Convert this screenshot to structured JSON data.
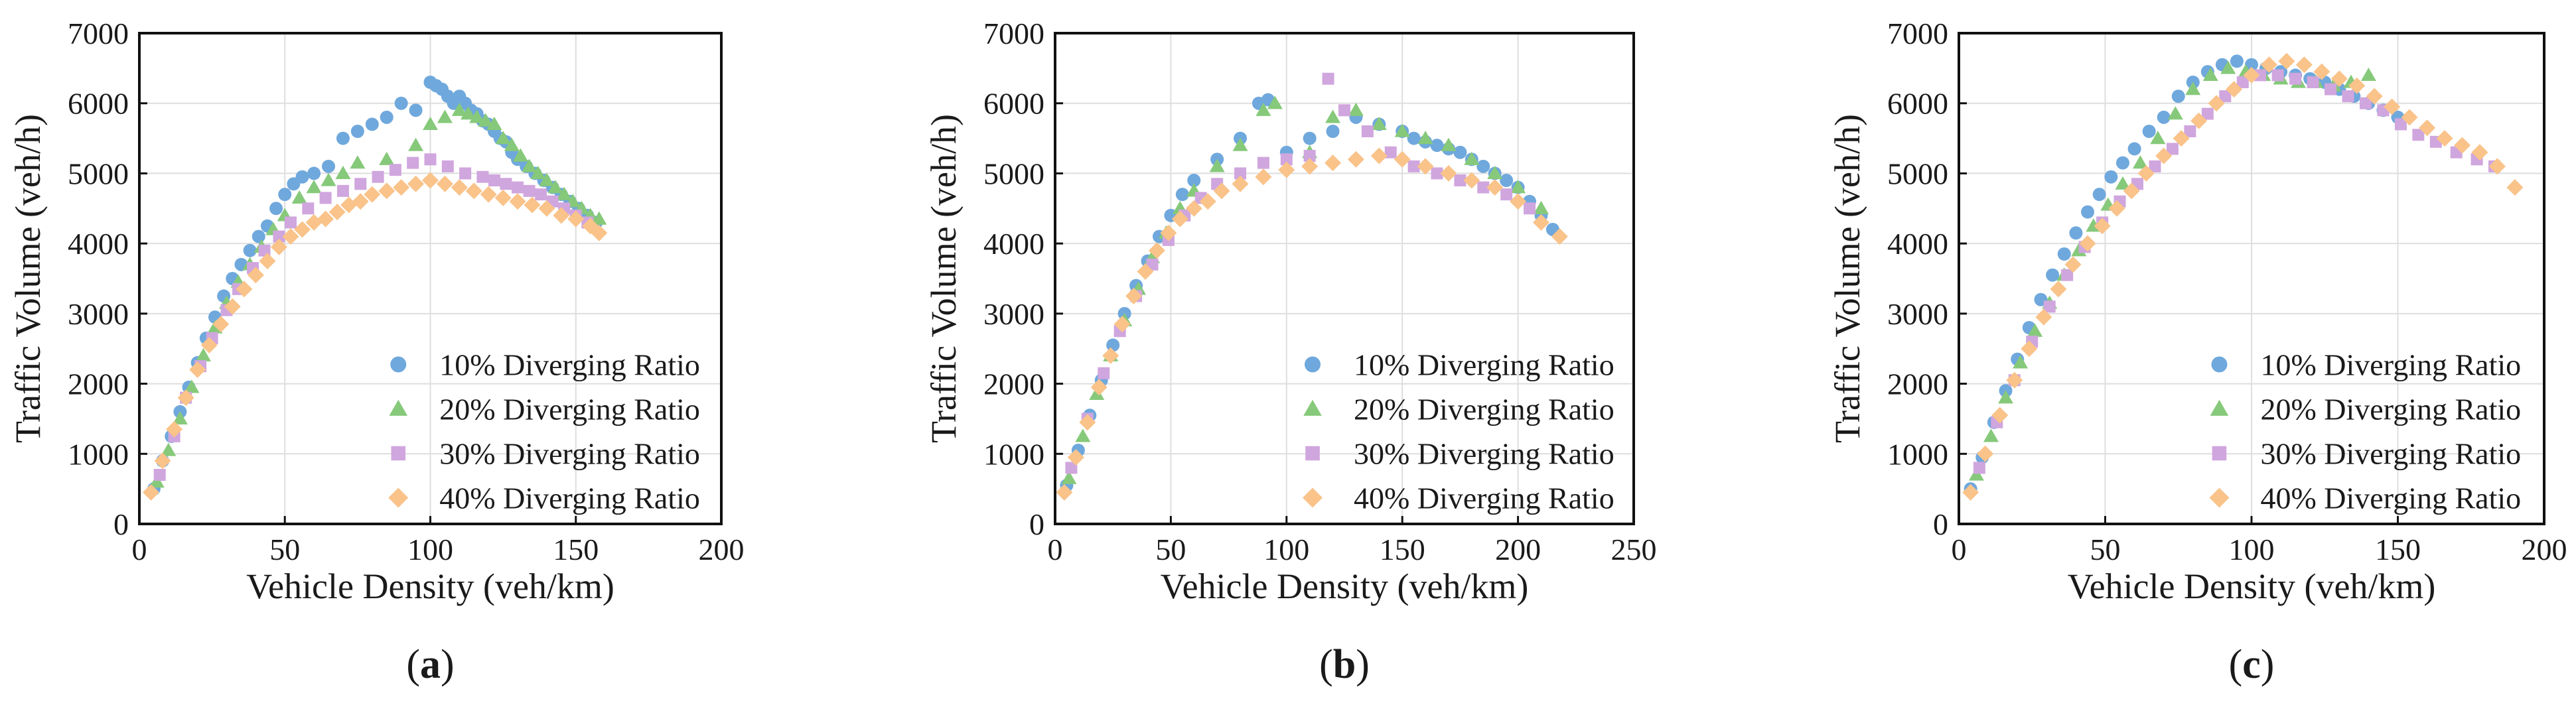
{
  "chart_data": [
    {
      "type": "scatter",
      "panel": "(a)",
      "panel_letter": "a",
      "xlabel": "Vehicle Density (veh/km)",
      "ylabel": "Traffic Volume (veh/h)",
      "xlim": [
        0,
        200
      ],
      "ylim": [
        0,
        7000
      ],
      "xticks": [
        0,
        50,
        100,
        150,
        200
      ],
      "yticks": [
        0,
        1000,
        2000,
        3000,
        4000,
        5000,
        6000,
        7000
      ],
      "grid": true,
      "legend_position": "lower-right",
      "series": [
        {
          "name": "10% Diverging Ratio",
          "marker": "circle",
          "color": "#6fa8dc",
          "x": [
            5,
            8,
            11,
            14,
            17,
            20,
            23,
            26,
            29,
            32,
            35,
            38,
            41,
            44,
            47,
            50,
            53,
            56,
            60,
            65,
            70,
            75,
            80,
            85,
            90,
            95,
            100,
            102,
            104,
            106,
            108,
            110,
            112,
            114,
            116,
            118,
            120,
            122,
            124,
            126,
            128,
            130,
            133,
            136,
            139,
            142,
            145,
            148,
            151,
            154,
            157
          ],
          "y": [
            500,
            900,
            1250,
            1600,
            1950,
            2300,
            2650,
            2950,
            3250,
            3500,
            3700,
            3900,
            4100,
            4250,
            4500,
            4700,
            4850,
            4950,
            5000,
            5100,
            5500,
            5600,
            5700,
            5800,
            6000,
            5900,
            6300,
            6250,
            6200,
            6100,
            6000,
            6100,
            6000,
            5900,
            5850,
            5750,
            5700,
            5600,
            5500,
            5450,
            5300,
            5200,
            5100,
            5000,
            4900,
            4800,
            4700,
            4600,
            4500,
            4400,
            4300
          ]
        },
        {
          "name": "20% Diverging Ratio",
          "marker": "triangle",
          "color": "#86c97a",
          "x": [
            6,
            10,
            14,
            18,
            22,
            26,
            30,
            34,
            38,
            42,
            46,
            50,
            55,
            60,
            65,
            70,
            75,
            85,
            95,
            100,
            105,
            110,
            113,
            116,
            119,
            122,
            125,
            128,
            131,
            134,
            137,
            140,
            143,
            146,
            149,
            152,
            155,
            158
          ],
          "y": [
            600,
            1050,
            1500,
            1950,
            2400,
            2800,
            3150,
            3450,
            3700,
            3950,
            4200,
            4400,
            4650,
            4800,
            4900,
            5000,
            5150,
            5200,
            5400,
            5700,
            5800,
            5900,
            5850,
            5800,
            5750,
            5700,
            5500,
            5400,
            5250,
            5100,
            5000,
            4900,
            4800,
            4700,
            4600,
            4500,
            4400,
            4350
          ]
        },
        {
          "name": "30% Diverging Ratio",
          "marker": "square",
          "color": "#d0a6de",
          "x": [
            7,
            12,
            16,
            21,
            25,
            30,
            34,
            39,
            43,
            48,
            52,
            58,
            64,
            70,
            76,
            82,
            88,
            94,
            100,
            106,
            112,
            118,
            122,
            126,
            130,
            134,
            138,
            142,
            146,
            150,
            154
          ],
          "y": [
            700,
            1250,
            1800,
            2250,
            2650,
            3050,
            3350,
            3650,
            3900,
            4100,
            4300,
            4500,
            4650,
            4750,
            4850,
            4950,
            5050,
            5150,
            5200,
            5100,
            5000,
            4950,
            4900,
            4850,
            4800,
            4750,
            4700,
            4600,
            4500,
            4400,
            4300
          ]
        },
        {
          "name": "40% Diverging Ratio",
          "marker": "diamond",
          "color": "#f9c38a",
          "x": [
            4,
            8,
            12,
            16,
            20,
            24,
            28,
            32,
            36,
            40,
            44,
            48,
            52,
            56,
            60,
            64,
            68,
            72,
            76,
            80,
            85,
            90,
            95,
            100,
            105,
            110,
            115,
            120,
            125,
            130,
            135,
            140,
            145,
            150,
            155,
            158
          ],
          "y": [
            450,
            900,
            1350,
            1800,
            2200,
            2550,
            2850,
            3100,
            3350,
            3550,
            3750,
            3950,
            4100,
            4200,
            4300,
            4350,
            4450,
            4550,
            4600,
            4700,
            4750,
            4800,
            4850,
            4900,
            4850,
            4800,
            4750,
            4700,
            4650,
            4600,
            4550,
            4500,
            4400,
            4350,
            4250,
            4150
          ]
        }
      ]
    },
    {
      "type": "scatter",
      "panel": "(b)",
      "panel_letter": "b",
      "xlabel": "Vehicle Density (veh/km)",
      "ylabel": "Traffic Volume (veh/h)",
      "xlim": [
        0,
        250
      ],
      "ylim": [
        0,
        7000
      ],
      "xticks": [
        0,
        50,
        100,
        150,
        200,
        250
      ],
      "yticks": [
        0,
        1000,
        2000,
        3000,
        4000,
        5000,
        6000,
        7000
      ],
      "grid": true,
      "legend_position": "lower-right",
      "series": [
        {
          "name": "10% Diverging Ratio",
          "marker": "circle",
          "color": "#6fa8dc",
          "x": [
            5,
            10,
            15,
            20,
            25,
            30,
            35,
            40,
            45,
            50,
            55,
            60,
            70,
            80,
            88,
            92,
            100,
            110,
            120,
            130,
            140,
            150,
            155,
            160,
            165,
            170,
            175,
            180,
            185,
            190,
            195,
            200,
            205,
            210,
            215
          ],
          "y": [
            550,
            1050,
            1550,
            2050,
            2550,
            3000,
            3400,
            3750,
            4100,
            4400,
            4700,
            4900,
            5200,
            5500,
            6000,
            6050,
            5300,
            5500,
            5600,
            5800,
            5700,
            5600,
            5500,
            5450,
            5400,
            5350,
            5300,
            5200,
            5100,
            5000,
            4900,
            4800,
            4600,
            4400,
            4200
          ]
        },
        {
          "name": "20% Diverging Ratio",
          "marker": "triangle",
          "color": "#86c97a",
          "x": [
            6,
            12,
            18,
            24,
            30,
            36,
            42,
            48,
            54,
            60,
            70,
            80,
            90,
            95,
            110,
            120,
            130,
            140,
            150,
            160,
            170,
            180,
            190,
            200,
            210
          ],
          "y": [
            650,
            1250,
            1850,
            2400,
            2900,
            3350,
            3800,
            4150,
            4500,
            4750,
            5100,
            5400,
            5900,
            6000,
            5300,
            5800,
            5900,
            5700,
            5600,
            5500,
            5400,
            5200,
            5000,
            4800,
            4500
          ]
        },
        {
          "name": "30% Diverging Ratio",
          "marker": "square",
          "color": "#d0a6de",
          "x": [
            7,
            14,
            21,
            28,
            35,
            42,
            49,
            56,
            63,
            70,
            80,
            90,
            100,
            110,
            118,
            125,
            135,
            145,
            155,
            165,
            175,
            185,
            195,
            205
          ],
          "y": [
            800,
            1500,
            2150,
            2750,
            3250,
            3700,
            4050,
            4400,
            4650,
            4850,
            5000,
            5150,
            5200,
            5250,
            6350,
            5900,
            5600,
            5300,
            5100,
            5000,
            4900,
            4800,
            4700,
            4500
          ]
        },
        {
          "name": "40% Diverging Ratio",
          "marker": "diamond",
          "color": "#f9c38a",
          "x": [
            4,
            9,
            14,
            19,
            24,
            29,
            34,
            39,
            44,
            49,
            54,
            60,
            66,
            72,
            80,
            90,
            100,
            110,
            120,
            130,
            140,
            150,
            160,
            170,
            180,
            190,
            200,
            210,
            218
          ],
          "y": [
            450,
            950,
            1450,
            1950,
            2400,
            2850,
            3250,
            3600,
            3900,
            4150,
            4350,
            4500,
            4600,
            4750,
            4850,
            4950,
            5050,
            5100,
            5150,
            5200,
            5250,
            5200,
            5100,
            5000,
            4900,
            4800,
            4600,
            4300,
            4100
          ]
        }
      ]
    },
    {
      "type": "scatter",
      "panel": "(c)",
      "panel_letter": "c",
      "xlabel": "Vehicle Density (veh/km)",
      "ylabel": "Traffic Volume (veh/h)",
      "xlim": [
        0,
        200
      ],
      "ylim": [
        0,
        7000
      ],
      "xticks": [
        0,
        50,
        100,
        150,
        200
      ],
      "yticks": [
        0,
        1000,
        2000,
        3000,
        4000,
        5000,
        6000,
        7000
      ],
      "grid": true,
      "legend_position": "lower-right",
      "series": [
        {
          "name": "10% Diverging Ratio",
          "marker": "circle",
          "color": "#6fa8dc",
          "x": [
            4,
            8,
            12,
            16,
            20,
            24,
            28,
            32,
            36,
            40,
            44,
            48,
            52,
            56,
            60,
            65,
            70,
            75,
            80,
            85,
            90,
            95,
            100,
            105,
            110,
            115,
            120,
            125,
            130,
            135,
            140,
            145,
            150
          ],
          "y": [
            500,
            950,
            1450,
            1900,
            2350,
            2800,
            3200,
            3550,
            3850,
            4150,
            4450,
            4700,
            4950,
            5150,
            5350,
            5600,
            5800,
            6100,
            6300,
            6450,
            6550,
            6600,
            6550,
            6500,
            6450,
            6400,
            6350,
            6300,
            6200,
            6100,
            6000,
            5900,
            5800
          ]
        },
        {
          "name": "20% Diverging Ratio",
          "marker": "triangle",
          "color": "#86c97a",
          "x": [
            6,
            11,
            16,
            21,
            26,
            31,
            36,
            41,
            46,
            51,
            56,
            62,
            68,
            74,
            80,
            86,
            92,
            98,
            104,
            110,
            116,
            122,
            128,
            134,
            140
          ],
          "y": [
            700,
            1250,
            1800,
            2300,
            2750,
            3150,
            3550,
            3900,
            4250,
            4550,
            4850,
            5150,
            5500,
            5850,
            6200,
            6400,
            6500,
            6450,
            6400,
            6350,
            6300,
            6300,
            6250,
            6300,
            6400
          ]
        },
        {
          "name": "30% Diverging Ratio",
          "marker": "square",
          "color": "#d0a6de",
          "x": [
            7,
            13,
            19,
            25,
            31,
            37,
            43,
            49,
            55,
            61,
            67,
            73,
            79,
            85,
            91,
            97,
            103,
            109,
            115,
            121,
            127,
            133,
            139,
            145,
            151,
            157,
            163,
            170,
            177,
            183
          ],
          "y": [
            800,
            1450,
            2050,
            2600,
            3100,
            3550,
            3950,
            4300,
            4600,
            4850,
            5100,
            5350,
            5600,
            5850,
            6100,
            6300,
            6400,
            6400,
            6350,
            6300,
            6200,
            6100,
            6000,
            5900,
            5700,
            5550,
            5450,
            5300,
            5200,
            5100
          ]
        },
        {
          "name": "40% Diverging Ratio",
          "marker": "diamond",
          "color": "#f9c38a",
          "x": [
            4,
            9,
            14,
            19,
            24,
            29,
            34,
            39,
            44,
            49,
            54,
            59,
            64,
            70,
            76,
            82,
            88,
            94,
            100,
            106,
            112,
            118,
            124,
            130,
            136,
            142,
            148,
            154,
            160,
            166,
            172,
            178,
            184,
            190
          ],
          "y": [
            450,
            1000,
            1550,
            2050,
            2500,
            2950,
            3350,
            3700,
            4000,
            4250,
            4500,
            4750,
            5000,
            5250,
            5500,
            5750,
            6000,
            6200,
            6400,
            6550,
            6600,
            6550,
            6450,
            6350,
            6250,
            6100,
            5950,
            5800,
            5650,
            5500,
            5400,
            5300,
            5100,
            4800
          ]
        }
      ]
    }
  ]
}
